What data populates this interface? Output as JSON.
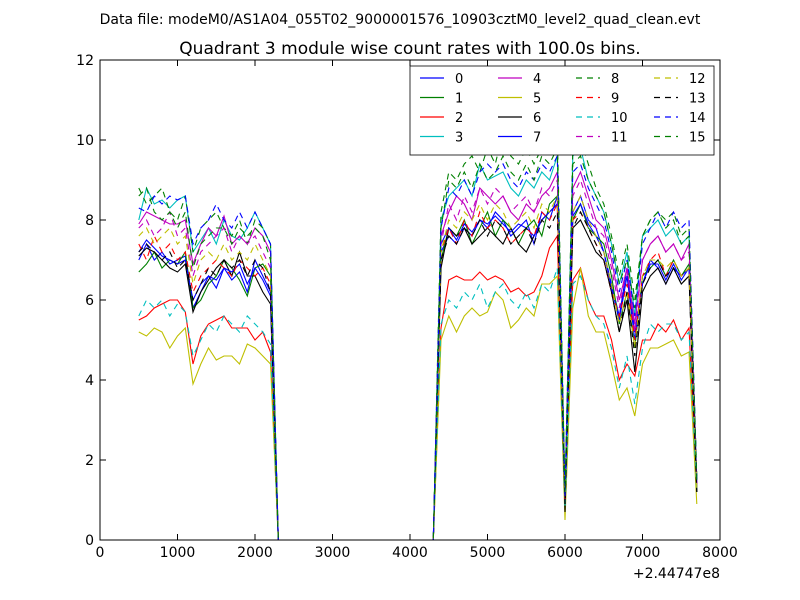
{
  "chart_data": {
    "type": "line",
    "suptitle": "Data file: modeM0/AS1A04_055T02_9000001576_10903cztM0_level2_quad_clean.evt",
    "title": "Quadrant 3 module wise count rates with 100.0s bins.",
    "xlabel": "",
    "ylabel": "",
    "xlim": [
      0,
      8000
    ],
    "ylim": [
      0,
      12
    ],
    "xticks": [
      "0",
      "1000",
      "2000",
      "3000",
      "4000",
      "5000",
      "6000",
      "7000",
      "8000"
    ],
    "yticks": [
      "0",
      "2",
      "4",
      "6",
      "8",
      "10",
      "12"
    ],
    "x_offset_label": "+2.44747e8",
    "legend_loc": "upper right",
    "legend_ncol": 4,
    "x": [
      500,
      600,
      700,
      800,
      900,
      1000,
      1100,
      1200,
      1300,
      1400,
      1500,
      1600,
      1700,
      1800,
      1900,
      2000,
      2100,
      2200,
      2300,
      4300,
      4400,
      4500,
      4600,
      4700,
      4800,
      4900,
      5000,
      5100,
      5200,
      5300,
      5400,
      5500,
      5600,
      5700,
      5800,
      5900,
      6000,
      6100,
      6200,
      6300,
      6400,
      6500,
      6600,
      6700,
      6800,
      6900,
      7000,
      7100,
      7200,
      7300,
      7400,
      7500,
      7600,
      7700
    ],
    "series": [
      {
        "name": "0",
        "color": "#0000ff",
        "dash": "solid",
        "values": [
          7.0,
          7.4,
          7.0,
          7.2,
          6.9,
          7.0,
          7.1,
          5.8,
          6.2,
          6.6,
          6.3,
          6.8,
          6.5,
          6.7,
          6.2,
          7.0,
          6.6,
          6.2,
          0.0,
          0.0,
          7.2,
          7.6,
          7.4,
          7.8,
          7.6,
          8.0,
          7.8,
          8.2,
          8.0,
          7.6,
          7.8,
          8.0,
          7.4,
          8.2,
          8.0,
          8.6,
          1.0,
          8.2,
          8.6,
          8.0,
          7.8,
          7.2,
          6.4,
          5.6,
          6.8,
          5.2,
          6.4,
          7.0,
          6.8,
          6.4,
          6.8,
          6.6,
          6.8,
          1.4
        ]
      },
      {
        "name": "1",
        "color": "#008000",
        "dash": "solid",
        "values": [
          6.7,
          6.9,
          7.2,
          6.8,
          7.0,
          6.9,
          7.2,
          5.8,
          6.0,
          6.4,
          6.6,
          7.0,
          6.8,
          6.5,
          6.1,
          6.8,
          6.9,
          6.6,
          0.0,
          0.0,
          7.0,
          7.8,
          7.6,
          8.0,
          7.4,
          7.8,
          8.2,
          7.6,
          8.0,
          7.8,
          7.4,
          7.8,
          8.0,
          7.6,
          8.4,
          8.6,
          1.0,
          8.0,
          8.4,
          7.8,
          7.6,
          7.4,
          6.6,
          5.4,
          6.2,
          4.8,
          6.6,
          6.8,
          7.0,
          6.6,
          7.0,
          6.6,
          6.9,
          1.2
        ]
      },
      {
        "name": "2",
        "color": "#ff0000",
        "dash": "solid",
        "values": [
          5.5,
          5.6,
          5.8,
          5.9,
          6.0,
          6.0,
          5.7,
          4.4,
          5.1,
          5.4,
          5.5,
          5.6,
          5.3,
          5.3,
          5.3,
          5.0,
          5.2,
          4.7,
          0.0,
          0.0,
          5.3,
          6.5,
          6.6,
          6.5,
          6.5,
          6.7,
          6.5,
          6.6,
          6.5,
          6.2,
          6.3,
          6.1,
          6.2,
          6.6,
          7.3,
          7.6,
          1.0,
          6.5,
          6.8,
          6.0,
          5.6,
          5.6,
          5.0,
          4.0,
          4.4,
          4.1,
          5.0,
          5.0,
          5.4,
          5.2,
          5.5,
          5.0,
          5.3,
          1.3
        ]
      },
      {
        "name": "3",
        "color": "#00bfbf",
        "dash": "solid",
        "values": [
          8.0,
          8.8,
          8.4,
          8.5,
          8.3,
          8.5,
          8.6,
          7.2,
          7.5,
          7.8,
          7.4,
          8.0,
          7.6,
          7.5,
          7.8,
          8.2,
          7.8,
          7.4,
          0.0,
          0.0,
          8.0,
          8.6,
          8.8,
          9.0,
          8.6,
          9.4,
          9.0,
          9.1,
          9.2,
          8.8,
          8.6,
          9.0,
          8.8,
          9.2,
          9.0,
          9.6,
          1.2,
          9.6,
          9.8,
          9.0,
          8.6,
          8.2,
          7.4,
          6.4,
          7.2,
          5.6,
          7.6,
          7.8,
          8.0,
          7.6,
          7.8,
          7.4,
          7.6,
          1.5
        ]
      },
      {
        "name": "4",
        "color": "#bf00bf",
        "dash": "solid",
        "values": [
          7.9,
          8.2,
          8.1,
          8.0,
          7.9,
          7.9,
          8.0,
          6.9,
          7.4,
          7.8,
          7.6,
          8.1,
          7.4,
          7.6,
          7.4,
          7.8,
          7.6,
          7.2,
          0.0,
          0.0,
          7.6,
          8.2,
          8.6,
          8.4,
          8.0,
          8.8,
          8.6,
          8.4,
          8.6,
          8.2,
          8.0,
          8.4,
          8.2,
          8.6,
          8.8,
          9.2,
          1.1,
          8.8,
          9.2,
          8.6,
          8.0,
          7.8,
          7.0,
          6.0,
          6.8,
          5.4,
          7.0,
          7.4,
          7.6,
          7.2,
          7.4,
          7.0,
          7.4,
          1.4
        ]
      },
      {
        "name": "5",
        "color": "#bfbf00",
        "dash": "solid",
        "values": [
          5.2,
          5.1,
          5.3,
          5.2,
          4.8,
          5.1,
          5.3,
          3.9,
          4.4,
          4.8,
          4.5,
          4.6,
          4.6,
          4.4,
          4.9,
          4.8,
          4.6,
          4.4,
          0.0,
          0.0,
          5.0,
          5.6,
          5.2,
          5.6,
          5.8,
          5.6,
          5.7,
          6.2,
          6.0,
          5.3,
          5.5,
          5.8,
          5.6,
          6.4,
          6.4,
          6.6,
          0.5,
          5.8,
          6.8,
          5.6,
          5.2,
          5.2,
          4.4,
          3.5,
          3.8,
          3.1,
          4.4,
          4.8,
          4.8,
          4.9,
          5.0,
          4.6,
          4.7,
          0.9
        ]
      },
      {
        "name": "6",
        "color": "#000000",
        "dash": "solid",
        "values": [
          7.1,
          7.3,
          7.2,
          7.0,
          6.8,
          6.7,
          6.9,
          5.7,
          6.2,
          6.5,
          6.8,
          7.0,
          6.6,
          7.2,
          6.6,
          6.6,
          6.2,
          5.9,
          0.0,
          0.0,
          6.8,
          7.8,
          7.6,
          7.8,
          7.4,
          7.6,
          7.8,
          7.6,
          7.4,
          7.8,
          7.4,
          7.2,
          7.6,
          8.0,
          8.2,
          8.4,
          0.7,
          7.8,
          8.0,
          7.6,
          7.2,
          7.0,
          6.2,
          5.2,
          6.0,
          4.2,
          6.2,
          6.6,
          6.8,
          6.4,
          6.8,
          6.4,
          6.6,
          1.2
        ]
      },
      {
        "name": "7",
        "color": "#0000ff",
        "dash": "solid",
        "values": [
          7.2,
          7.5,
          7.3,
          7.1,
          7.0,
          6.9,
          7.0,
          6.0,
          6.4,
          6.6,
          6.5,
          6.8,
          6.7,
          6.9,
          6.4,
          6.8,
          6.5,
          6.1,
          0.0,
          0.0,
          7.4,
          7.8,
          7.5,
          7.9,
          7.7,
          8.0,
          7.9,
          8.1,
          7.9,
          7.7,
          7.9,
          7.8,
          7.6,
          8.0,
          8.2,
          8.4,
          1.0,
          8.1,
          8.4,
          7.9,
          7.6,
          7.2,
          6.3,
          5.5,
          6.6,
          5.0,
          6.4,
          6.9,
          6.9,
          6.5,
          6.9,
          6.5,
          6.8,
          1.3
        ]
      },
      {
        "name": "8",
        "color": "#008000",
        "dash": "dashed",
        "values": [
          8.8,
          8.4,
          8.6,
          8.8,
          8.2,
          8.0,
          8.6,
          7.2,
          7.8,
          8.0,
          8.2,
          7.8,
          7.6,
          8.0,
          7.4,
          8.0,
          7.8,
          7.4,
          0.0,
          0.0,
          8.2,
          9.2,
          9.0,
          9.4,
          9.6,
          9.2,
          9.8,
          9.4,
          10.2,
          9.6,
          9.4,
          9.8,
          9.4,
          9.8,
          10.0,
          10.2,
          1.2,
          9.8,
          10.0,
          9.4,
          8.8,
          8.4,
          7.6,
          6.6,
          7.4,
          6.0,
          7.6,
          8.0,
          8.2,
          8.0,
          8.2,
          7.6,
          7.8,
          1.6
        ]
      },
      {
        "name": "9",
        "color": "#ff0000",
        "dash": "dashed",
        "values": [
          7.4,
          7.0,
          7.6,
          7.2,
          7.4,
          7.0,
          7.2,
          6.2,
          6.6,
          6.8,
          7.0,
          6.8,
          6.6,
          7.0,
          6.8,
          6.6,
          6.8,
          6.4,
          0.0,
          0.0,
          7.2,
          7.8,
          7.4,
          8.0,
          7.6,
          8.2,
          7.8,
          8.0,
          7.8,
          7.4,
          7.6,
          7.8,
          7.6,
          8.2,
          8.0,
          8.4,
          1.0,
          8.0,
          8.2,
          7.8,
          7.4,
          7.0,
          6.2,
          5.6,
          6.4,
          5.0,
          6.6,
          7.0,
          7.2,
          6.6,
          7.0,
          6.6,
          6.8,
          1.4
        ]
      },
      {
        "name": "10",
        "color": "#00bfbf",
        "dash": "dashed",
        "values": [
          5.6,
          6.0,
          5.8,
          6.0,
          5.6,
          5.9,
          5.7,
          4.6,
          5.0,
          5.4,
          5.2,
          5.6,
          5.4,
          5.2,
          5.6,
          5.4,
          5.2,
          4.9,
          0.0,
          0.0,
          5.4,
          6.0,
          5.8,
          6.2,
          6.0,
          6.4,
          5.8,
          6.2,
          6.4,
          6.0,
          5.8,
          6.2,
          5.8,
          6.4,
          6.2,
          6.8,
          0.8,
          6.4,
          6.6,
          6.0,
          5.6,
          5.4,
          4.8,
          3.8,
          4.6,
          3.4,
          4.8,
          5.4,
          5.2,
          5.4,
          5.4,
          5.0,
          5.2,
          1.2
        ]
      },
      {
        "name": "11",
        "color": "#bf00bf",
        "dash": "dashed",
        "values": [
          7.8,
          8.0,
          7.6,
          7.8,
          8.2,
          7.6,
          7.8,
          6.6,
          7.2,
          7.4,
          7.6,
          7.8,
          7.2,
          7.6,
          7.4,
          7.6,
          7.2,
          6.8,
          0.0,
          0.0,
          7.4,
          8.4,
          8.0,
          8.6,
          8.2,
          8.8,
          8.4,
          8.8,
          8.6,
          8.2,
          8.4,
          8.6,
          8.2,
          8.8,
          8.6,
          9.0,
          1.1,
          8.6,
          9.0,
          8.4,
          7.8,
          7.6,
          6.8,
          5.8,
          6.8,
          5.2,
          7.0,
          7.4,
          7.6,
          7.2,
          7.4,
          7.0,
          7.2,
          1.4
        ]
      },
      {
        "name": "12",
        "color": "#bfbf00",
        "dash": "dashed",
        "values": [
          7.6,
          7.8,
          7.4,
          7.6,
          7.8,
          7.4,
          7.6,
          6.4,
          7.0,
          7.2,
          7.0,
          7.4,
          7.0,
          7.2,
          7.0,
          7.4,
          7.0,
          6.6,
          0.0,
          0.0,
          7.2,
          8.0,
          7.8,
          8.2,
          8.0,
          8.4,
          8.0,
          8.4,
          8.2,
          7.8,
          8.0,
          8.2,
          7.8,
          8.4,
          8.2,
          8.6,
          1.0,
          8.2,
          8.6,
          8.0,
          7.6,
          7.2,
          6.4,
          5.4,
          6.2,
          4.8,
          6.6,
          7.0,
          7.0,
          6.8,
          7.0,
          6.6,
          6.8,
          1.3
        ]
      },
      {
        "name": "13",
        "color": "#000000",
        "dash": "dashed",
        "values": [
          7.2,
          7.4,
          7.2,
          7.0,
          7.2,
          6.8,
          7.0,
          6.0,
          6.4,
          6.8,
          6.6,
          7.0,
          6.8,
          7.0,
          6.6,
          7.0,
          6.8,
          6.2,
          0.0,
          0.0,
          7.0,
          7.6,
          7.4,
          7.8,
          7.6,
          8.0,
          7.6,
          8.0,
          7.8,
          7.4,
          7.6,
          7.8,
          7.4,
          8.0,
          7.8,
          8.2,
          0.9,
          7.8,
          8.2,
          7.8,
          7.4,
          7.0,
          6.2,
          5.2,
          6.2,
          4.6,
          6.4,
          6.8,
          7.0,
          6.6,
          6.8,
          6.4,
          6.6,
          1.2
        ]
      },
      {
        "name": "14",
        "color": "#0000ff",
        "dash": "dashed",
        "values": [
          8.3,
          8.2,
          8.6,
          8.4,
          8.6,
          8.5,
          8.6,
          7.4,
          7.8,
          8.0,
          8.4,
          8.0,
          7.8,
          8.2,
          7.8,
          8.2,
          7.8,
          7.4,
          0.0,
          0.0,
          7.8,
          8.8,
          8.6,
          9.0,
          8.6,
          9.2,
          9.4,
          9.2,
          9.4,
          9.0,
          8.8,
          9.2,
          9.0,
          9.4,
          9.2,
          9.6,
          1.1,
          9.2,
          9.4,
          8.8,
          8.4,
          8.0,
          7.2,
          6.2,
          7.0,
          5.6,
          7.4,
          7.8,
          8.2,
          7.8,
          8.2,
          7.8,
          8.0,
          1.5
        ]
      },
      {
        "name": "15",
        "color": "#008000",
        "dash": "dashed",
        "values": [
          8.6,
          8.8,
          8.2,
          8.0,
          8.2,
          7.8,
          8.2,
          6.8,
          7.4,
          7.6,
          7.8,
          7.8,
          7.4,
          7.8,
          7.6,
          7.8,
          7.6,
          7.0,
          0.0,
          0.0,
          7.8,
          9.0,
          8.8,
          9.2,
          8.8,
          9.4,
          9.0,
          9.2,
          9.6,
          9.2,
          9.0,
          9.4,
          9.0,
          9.6,
          9.4,
          9.8,
          1.2,
          9.4,
          9.6,
          9.0,
          8.6,
          8.2,
          7.4,
          6.4,
          7.0,
          5.8,
          7.6,
          8.0,
          8.2,
          7.8,
          8.0,
          7.4,
          7.6,
          1.5
        ]
      }
    ]
  }
}
